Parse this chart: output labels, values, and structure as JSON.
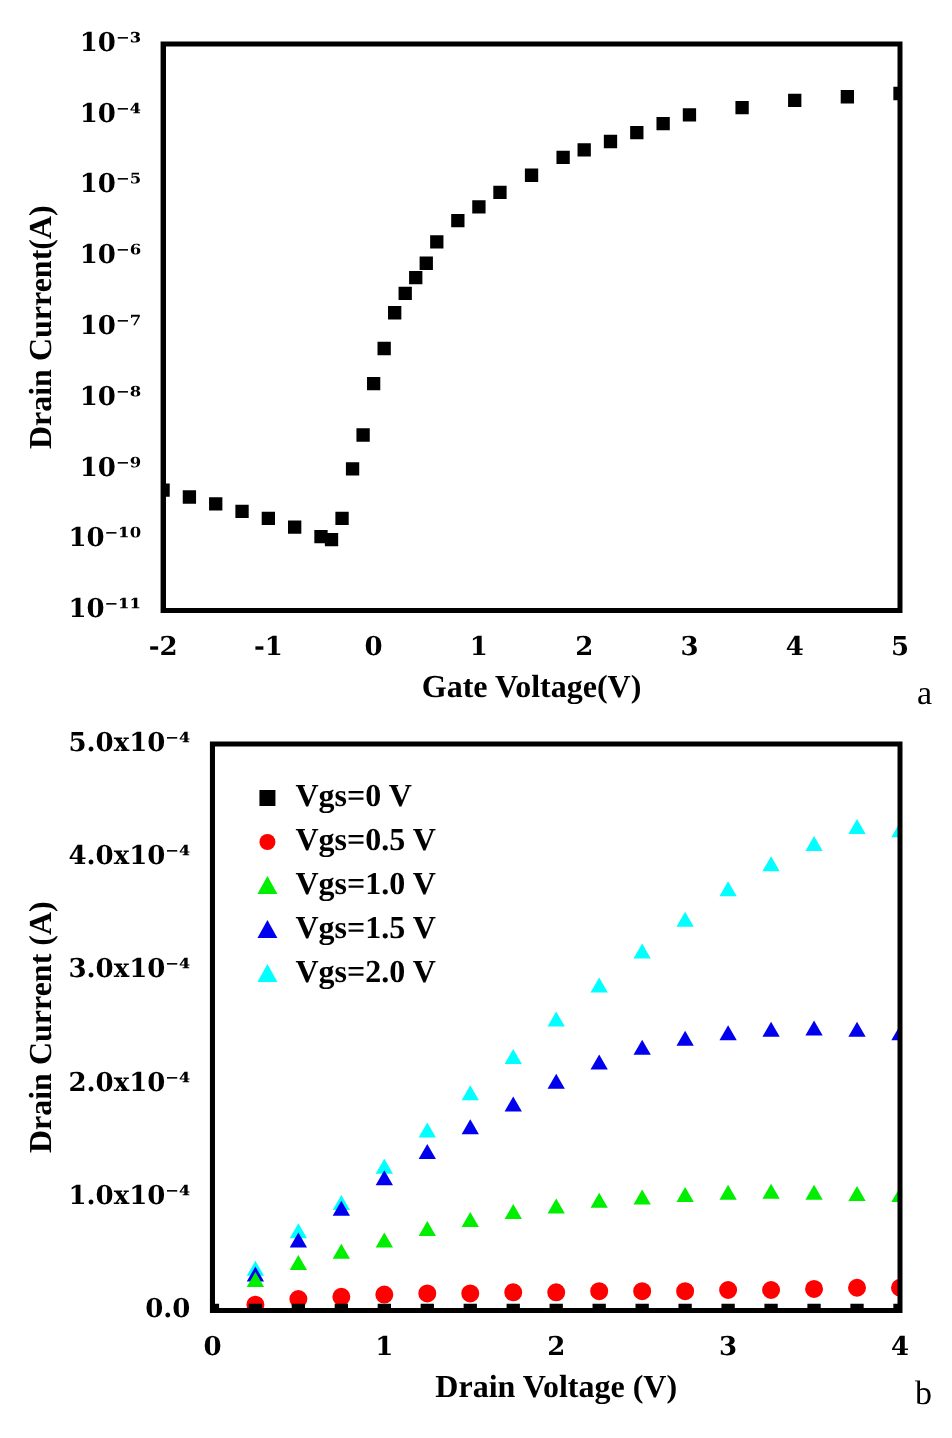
{
  "chart_data": [
    {
      "type": "scatter",
      "xlabel": "Gate Voltage(V)",
      "ylabel": "Drain Current(A)",
      "log": "y",
      "marker": "square",
      "annotations": [
        "a"
      ],
      "xlim": [
        -2,
        5
      ],
      "xticks": [
        -2,
        -1,
        0,
        1,
        2,
        3,
        4,
        5
      ],
      "ylim": [
        1e-11,
        0.001
      ],
      "yticks": [
        {
          "value": 1e-11,
          "label": "10⁻¹¹"
        },
        {
          "value": 1e-10,
          "label": "10⁻¹⁰"
        },
        {
          "value": 1e-09,
          "label": "10⁻⁹"
        },
        {
          "value": 1e-08,
          "label": "10⁻⁸"
        },
        {
          "value": 1e-07,
          "label": "10⁻⁷"
        },
        {
          "value": 1e-06,
          "label": "10⁻⁶"
        },
        {
          "value": 1e-05,
          "label": "10⁻⁵"
        },
        {
          "value": 0.0001,
          "label": "10⁻⁴"
        },
        {
          "value": 0.001,
          "label": "10⁻³"
        }
      ],
      "series": [
        {
          "color": "#000000",
          "x": [
            -2,
            -1.75,
            -1.5,
            -1.25,
            -1,
            -0.75,
            -0.5,
            -0.4,
            -0.3,
            -0.2,
            -0.1,
            0,
            0.1,
            0.2,
            0.3,
            0.4,
            0.5,
            0.6,
            0.8,
            1,
            1.2,
            1.5,
            1.8,
            2,
            2.25,
            2.5,
            2.75,
            3,
            3.5,
            4,
            4.5,
            5
          ],
          "values": [
            5e-10,
            4e-10,
            3.2e-10,
            2.5e-10,
            2e-10,
            1.5e-10,
            1.1e-10,
            1e-10,
            2e-10,
            1e-09,
            3e-09,
            1.6e-08,
            5e-08,
            1.6e-07,
            3e-07,
            5e-07,
            8e-07,
            1.6e-06,
            3.2e-06,
            5e-06,
            8e-06,
            1.4e-05,
            2.5e-05,
            3.2e-05,
            4.2e-05,
            5.6e-05,
            7.5e-05,
            0.0001,
            0.000126,
            0.00016,
            0.00018,
            0.0002
          ]
        }
      ]
    },
    {
      "type": "scatter",
      "xlabel": "Drain Voltage (V)",
      "ylabel": "Drain Current (A)",
      "legend": "top left",
      "annotations": [
        "b"
      ],
      "xlim": [
        0,
        4
      ],
      "xticks": [
        0,
        1,
        2,
        3,
        4
      ],
      "ylim": [
        0,
        0.0005
      ],
      "yticks": [
        {
          "value": 0,
          "label": "0.0"
        },
        {
          "value": 0.0001,
          "label": "1.0x10⁻⁴"
        },
        {
          "value": 0.0002,
          "label": "2.0x10⁻⁴"
        },
        {
          "value": 0.0003,
          "label": "3.0x10⁻⁴"
        },
        {
          "value": 0.0004,
          "label": "4.0x10⁻⁴"
        },
        {
          "value": 0.0005,
          "label": "5.0x10⁻⁴"
        }
      ],
      "x": [
        0,
        0.25,
        0.5,
        0.75,
        1,
        1.25,
        1.5,
        1.75,
        2,
        2.25,
        2.5,
        2.75,
        3,
        3.25,
        3.5,
        3.75,
        4
      ],
      "series": [
        {
          "name": "Vgs=0 V",
          "color": "#000000",
          "marker": "square",
          "values": [
            0,
            0,
            0,
            0,
            0,
            0,
            0,
            0,
            0,
            0,
            0,
            0,
            0,
            0,
            0,
            0,
            0
          ]
        },
        {
          "name": "Vgs=0.5 V",
          "color": "#ff0000",
          "marker": "circle",
          "values": [
            null,
            5e-06,
            1e-05,
            1.2e-05,
            1.4e-05,
            1.5e-05,
            1.5e-05,
            1.6e-05,
            1.6e-05,
            1.7e-05,
            1.7e-05,
            1.7e-05,
            1.8e-05,
            1.8e-05,
            1.9e-05,
            2e-05,
            2e-05
          ]
        },
        {
          "name": "Vgs=1.0 V",
          "color": "#00ee00",
          "marker": "triangle",
          "values": [
            null,
            2.5e-05,
            4e-05,
            5e-05,
            6e-05,
            7e-05,
            7.8e-05,
            8.5e-05,
            9e-05,
            9.5e-05,
            9.8e-05,
            0.0001,
            0.000102,
            0.000103,
            0.000102,
            0.000101,
            0.0001
          ]
        },
        {
          "name": "Vgs=1.5 V",
          "color": "#0000ee",
          "marker": "triangle",
          "values": [
            null,
            3e-05,
            6e-05,
            8.8e-05,
            0.000115,
            0.000138,
            0.00016,
            0.00018,
            0.0002,
            0.000217,
            0.00023,
            0.000238,
            0.000243,
            0.000246,
            0.000247,
            0.000246,
            0.000243
          ]
        },
        {
          "name": "Vgs=2.0 V",
          "color": "#00ffff",
          "marker": "triangle",
          "values": [
            null,
            3.5e-05,
            6.8e-05,
            9.3e-05,
            0.000125,
            0.000157,
            0.00019,
            0.000222,
            0.000255,
            0.000285,
            0.000315,
            0.000343,
            0.00037,
            0.000392,
            0.00041,
            0.000425,
            0.000422
          ]
        }
      ]
    }
  ]
}
